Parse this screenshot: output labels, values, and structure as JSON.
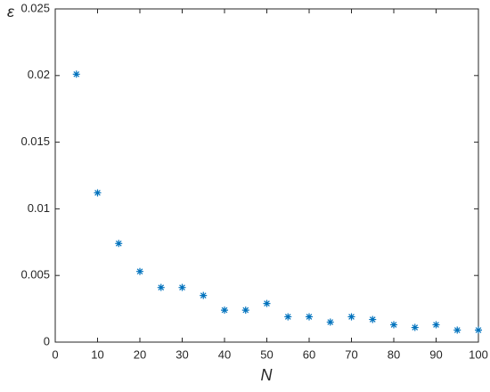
{
  "chart_data": {
    "type": "scatter",
    "x_label": "N",
    "y_label": "ε",
    "x": [
      5,
      10,
      15,
      20,
      25,
      30,
      35,
      40,
      45,
      50,
      55,
      60,
      65,
      70,
      75,
      80,
      85,
      90,
      95,
      100
    ],
    "values": [
      0.0201,
      0.0112,
      0.0074,
      0.0053,
      0.0041,
      0.0041,
      0.0035,
      0.0024,
      0.0024,
      0.0029,
      0.0019,
      0.0019,
      0.0015,
      0.0019,
      0.0017,
      0.0013,
      0.0011,
      0.0013,
      0.0009,
      0.0009
    ],
    "color": "#0072bd",
    "marker": "asterisk",
    "xlim": [
      0,
      100
    ],
    "xticks": [
      0,
      10,
      20,
      30,
      40,
      50,
      60,
      70,
      80,
      90,
      100
    ],
    "ylim": [
      0,
      0.025
    ],
    "yticks": [
      0,
      0.005,
      0.01,
      0.015,
      0.02,
      0.025
    ],
    "grid": false,
    "box": true
  }
}
